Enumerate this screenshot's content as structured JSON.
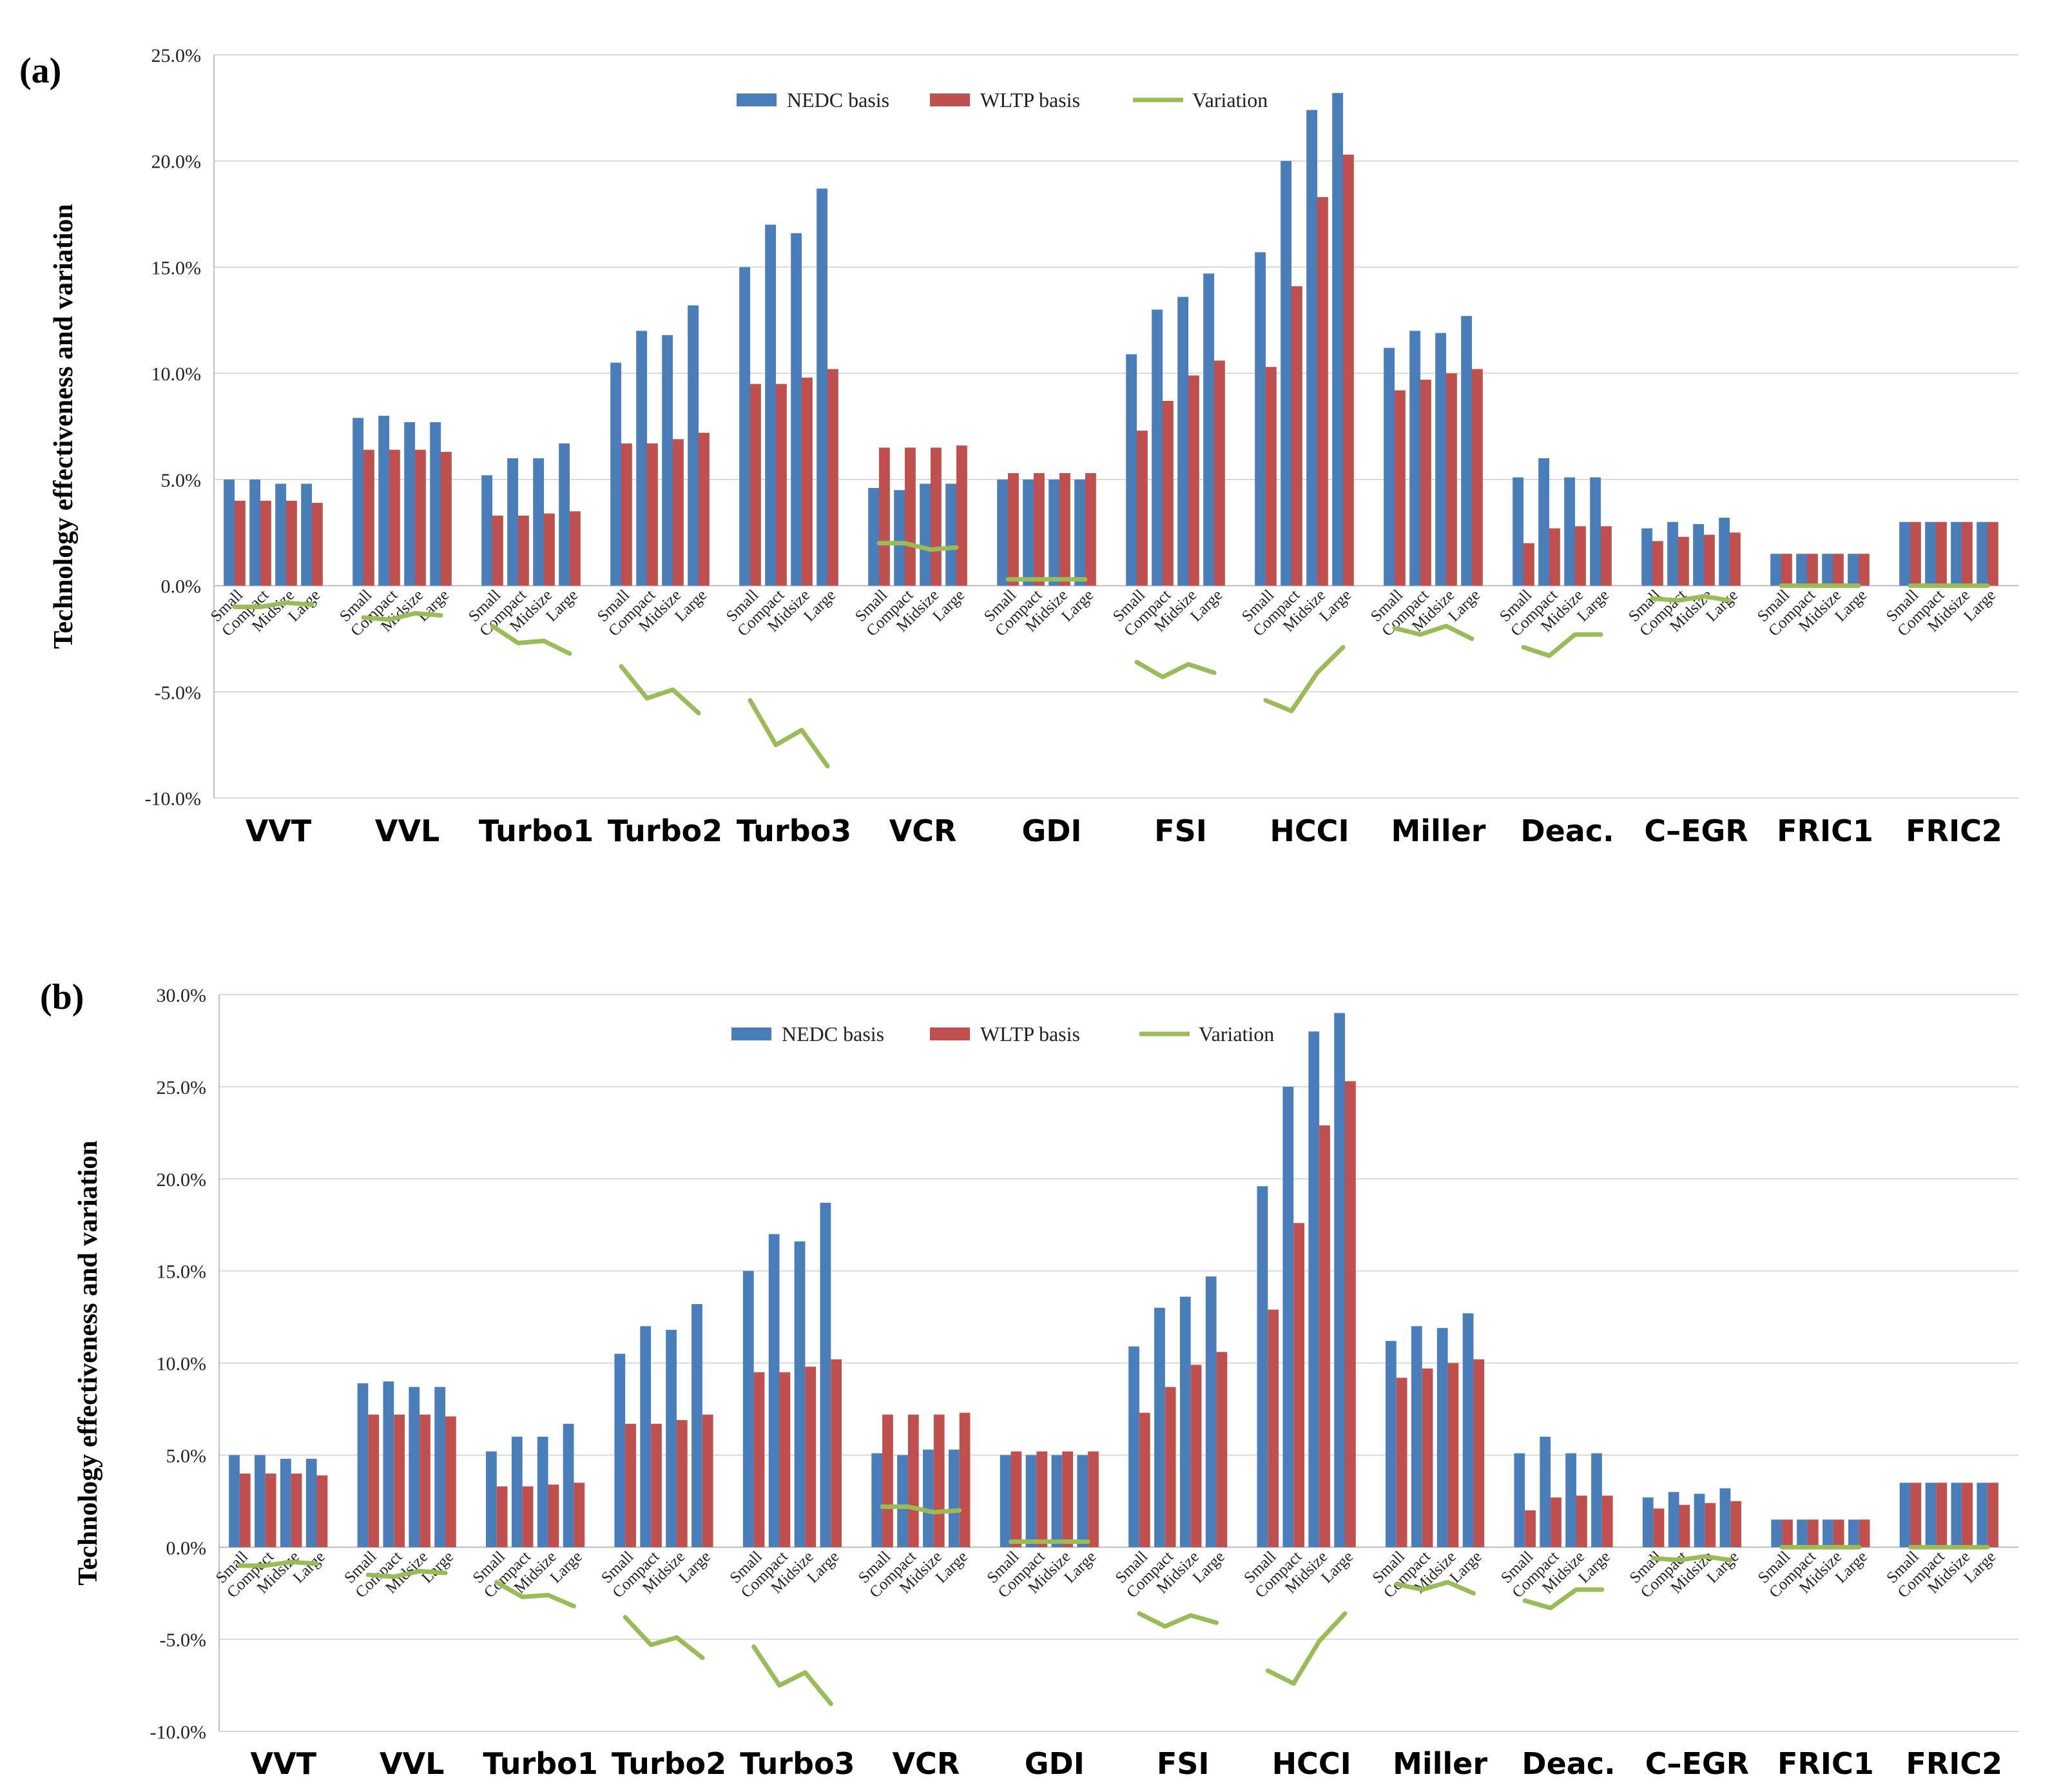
{
  "chart_data": [
    {
      "panel": "(a)",
      "type": "bar",
      "ylabel": "Technology effectiveness and variation",
      "ylim": [
        -10,
        25
      ],
      "yticks": [
        "-10.0%",
        "-5.0%",
        "0.0%",
        "5.0%",
        "10.0%",
        "15.0%",
        "20.0%",
        "25.0%"
      ],
      "groups": [
        "VVT",
        "VVL",
        "Turbo1",
        "Turbo2",
        "Turbo3",
        "VCR",
        "GDI",
        "FSI",
        "HCCI",
        "Miller",
        "Deac.",
        "C–EGR",
        "FRIC1",
        "FRIC2"
      ],
      "subcategories": [
        "Small",
        "Compact",
        "Midsize",
        "Large"
      ],
      "legend": [
        "NEDC basis",
        "WLTP basis",
        "Variation"
      ],
      "series": [
        {
          "name": "NEDC basis",
          "color": "#4a7ebb",
          "values": [
            [
              5.0,
              5.0,
              4.8,
              4.8
            ],
            [
              7.9,
              8.0,
              7.7,
              7.7
            ],
            [
              5.2,
              6.0,
              6.0,
              6.7
            ],
            [
              10.5,
              12.0,
              11.8,
              13.2
            ],
            [
              15.0,
              17.0,
              16.6,
              18.7
            ],
            [
              4.6,
              4.5,
              4.8,
              4.8
            ],
            [
              5.0,
              5.0,
              5.0,
              5.0
            ],
            [
              10.9,
              13.0,
              13.6,
              14.7
            ],
            [
              15.7,
              20.0,
              22.4,
              23.2
            ],
            [
              11.2,
              12.0,
              11.9,
              12.7
            ],
            [
              5.1,
              6.0,
              5.1,
              5.1
            ],
            [
              2.7,
              3.0,
              2.9,
              3.2
            ],
            [
              1.5,
              1.5,
              1.5,
              1.5
            ],
            [
              3.0,
              3.0,
              3.0,
              3.0
            ]
          ]
        },
        {
          "name": "WLTP basis",
          "color": "#c0504d",
          "values": [
            [
              4.0,
              4.0,
              4.0,
              3.9
            ],
            [
              6.4,
              6.4,
              6.4,
              6.3
            ],
            [
              3.3,
              3.3,
              3.4,
              3.5
            ],
            [
              6.7,
              6.7,
              6.9,
              7.2
            ],
            [
              9.5,
              9.5,
              9.8,
              10.2
            ],
            [
              6.5,
              6.5,
              6.5,
              6.6
            ],
            [
              5.3,
              5.3,
              5.3,
              5.3
            ],
            [
              7.3,
              8.7,
              9.9,
              10.6
            ],
            [
              10.3,
              14.1,
              18.3,
              20.3
            ],
            [
              9.2,
              9.7,
              10.0,
              10.2
            ],
            [
              2.0,
              2.7,
              2.8,
              2.8
            ],
            [
              2.1,
              2.3,
              2.4,
              2.5
            ],
            [
              1.5,
              1.5,
              1.5,
              1.5
            ],
            [
              3.0,
              3.0,
              3.0,
              3.0
            ]
          ]
        },
        {
          "name": "Variation",
          "color": "#9bbb59",
          "values": [
            [
              -1.0,
              -1.0,
              -0.8,
              -0.9
            ],
            [
              -1.5,
              -1.6,
              -1.3,
              -1.4
            ],
            [
              -1.9,
              -2.7,
              -2.6,
              -3.2
            ],
            [
              -3.8,
              -5.3,
              -4.9,
              -6.0
            ],
            [
              -5.4,
              -7.5,
              -6.8,
              -8.5
            ],
            [
              2.0,
              2.0,
              1.7,
              1.8
            ],
            [
              0.3,
              0.3,
              0.3,
              0.3
            ],
            [
              -3.6,
              -4.3,
              -3.7,
              -4.1
            ],
            [
              -5.4,
              -5.9,
              -4.1,
              -2.9
            ],
            [
              -2.0,
              -2.3,
              -1.9,
              -2.5
            ],
            [
              -2.9,
              -3.3,
              -2.3,
              -2.3
            ],
            [
              -0.6,
              -0.7,
              -0.5,
              -0.7
            ],
            [
              0.0,
              0.0,
              0.0,
              0.0
            ],
            [
              0.0,
              0.0,
              0.0,
              0.0
            ]
          ]
        }
      ]
    },
    {
      "panel": "(b)",
      "type": "bar",
      "ylabel": "Technology effectiveness and variation",
      "ylim": [
        -10,
        30
      ],
      "yticks": [
        "-10.0%",
        "-5.0%",
        "0.0%",
        "5.0%",
        "10.0%",
        "15.0%",
        "20.0%",
        "25.0%",
        "30.0%"
      ],
      "groups": [
        "VVT",
        "VVL",
        "Turbo1",
        "Turbo2",
        "Turbo3",
        "VCR",
        "GDI",
        "FSI",
        "HCCI",
        "Miller",
        "Deac.",
        "C–EGR",
        "FRIC1",
        "FRIC2"
      ],
      "subcategories": [
        "Small",
        "Compact",
        "Midsize",
        "Large"
      ],
      "legend": [
        "NEDC basis",
        "WLTP basis",
        "Variation"
      ],
      "series": [
        {
          "name": "NEDC basis",
          "color": "#4a7ebb",
          "values": [
            [
              5.0,
              5.0,
              4.8,
              4.8
            ],
            [
              8.9,
              9.0,
              8.7,
              8.7
            ],
            [
              5.2,
              6.0,
              6.0,
              6.7
            ],
            [
              10.5,
              12.0,
              11.8,
              13.2
            ],
            [
              15.0,
              17.0,
              16.6,
              18.7
            ],
            [
              5.1,
              5.0,
              5.3,
              5.3
            ],
            [
              5.0,
              5.0,
              5.0,
              5.0
            ],
            [
              10.9,
              13.0,
              13.6,
              14.7
            ],
            [
              19.6,
              25.0,
              28.0,
              29.0
            ],
            [
              11.2,
              12.0,
              11.9,
              12.7
            ],
            [
              5.1,
              6.0,
              5.1,
              5.1
            ],
            [
              2.7,
              3.0,
              2.9,
              3.2
            ],
            [
              1.5,
              1.5,
              1.5,
              1.5
            ],
            [
              3.5,
              3.5,
              3.5,
              3.5
            ]
          ]
        },
        {
          "name": "WLTP basis",
          "color": "#c0504d",
          "values": [
            [
              4.0,
              4.0,
              4.0,
              3.9
            ],
            [
              7.2,
              7.2,
              7.2,
              7.1
            ],
            [
              3.3,
              3.3,
              3.4,
              3.5
            ],
            [
              6.7,
              6.7,
              6.9,
              7.2
            ],
            [
              9.5,
              9.5,
              9.8,
              10.2
            ],
            [
              7.2,
              7.2,
              7.2,
              7.3
            ],
            [
              5.2,
              5.2,
              5.2,
              5.2
            ],
            [
              7.3,
              8.7,
              9.9,
              10.6
            ],
            [
              12.9,
              17.6,
              22.9,
              25.3
            ],
            [
              9.2,
              9.7,
              10.0,
              10.2
            ],
            [
              2.0,
              2.7,
              2.8,
              2.8
            ],
            [
              2.1,
              2.3,
              2.4,
              2.5
            ],
            [
              1.5,
              1.5,
              1.5,
              1.5
            ],
            [
              3.5,
              3.5,
              3.5,
              3.5
            ]
          ]
        },
        {
          "name": "Variation",
          "color": "#9bbb59",
          "values": [
            [
              -1.0,
              -1.0,
              -0.8,
              -0.9
            ],
            [
              -1.5,
              -1.6,
              -1.3,
              -1.4
            ],
            [
              -1.9,
              -2.7,
              -2.6,
              -3.2
            ],
            [
              -3.8,
              -5.3,
              -4.9,
              -6.0
            ],
            [
              -5.4,
              -7.5,
              -6.8,
              -8.5
            ],
            [
              2.2,
              2.2,
              1.9,
              2.0
            ],
            [
              0.3,
              0.3,
              0.3,
              0.3
            ],
            [
              -3.6,
              -4.3,
              -3.7,
              -4.1
            ],
            [
              -6.7,
              -7.4,
              -5.1,
              -3.6
            ],
            [
              -2.0,
              -2.3,
              -1.9,
              -2.5
            ],
            [
              -2.9,
              -3.3,
              -2.3,
              -2.3
            ],
            [
              -0.6,
              -0.7,
              -0.5,
              -0.7
            ],
            [
              0.0,
              0.0,
              0.0,
              0.0
            ],
            [
              0.0,
              0.0,
              0.0,
              0.0
            ]
          ]
        }
      ]
    }
  ]
}
